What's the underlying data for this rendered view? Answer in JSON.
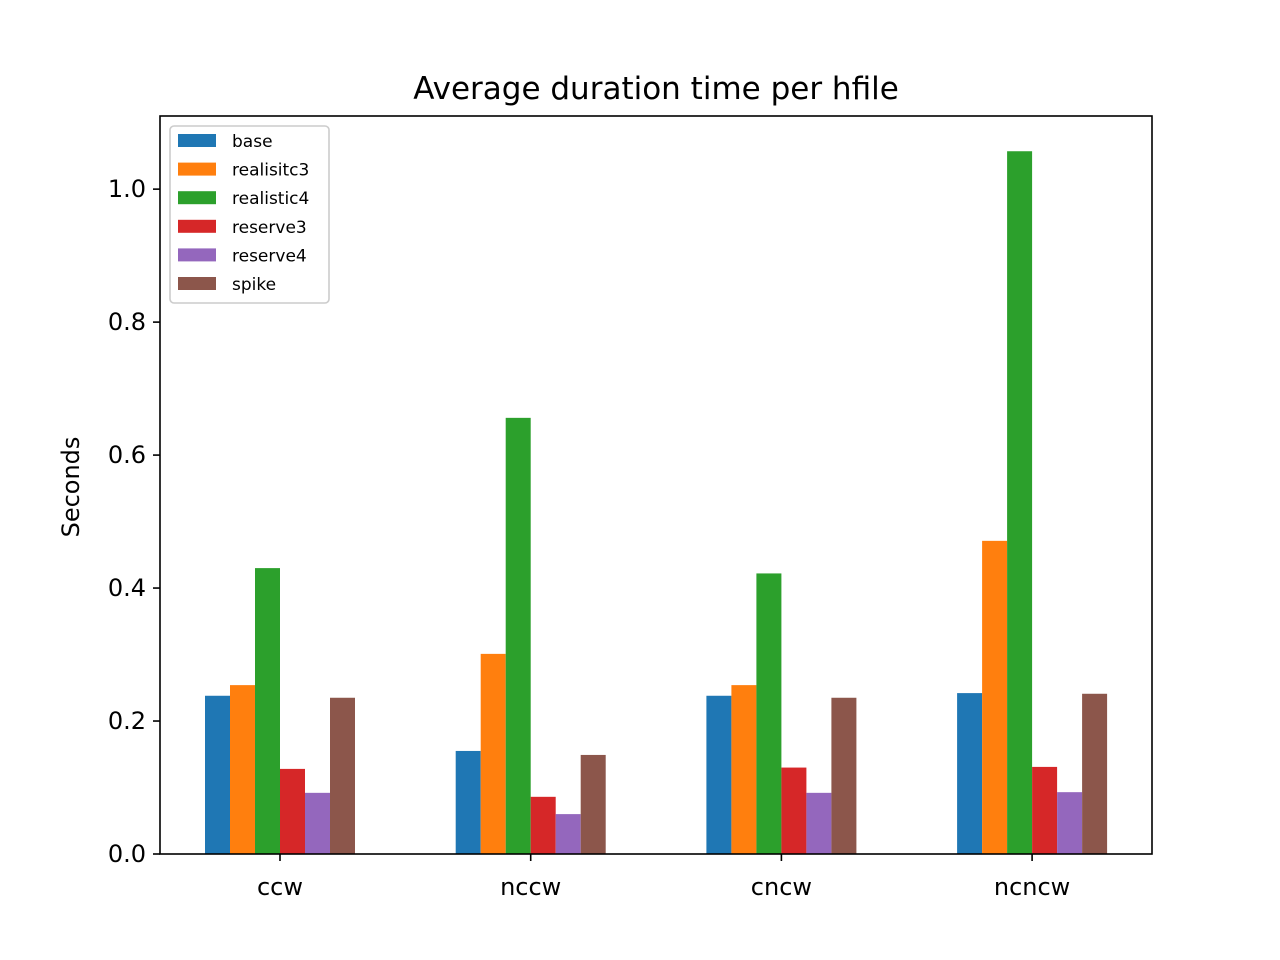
{
  "chart_data": {
    "type": "bar",
    "title": "Average duration time per hfile",
    "xlabel": "",
    "ylabel": "Seconds",
    "categories": [
      "ccw",
      "nccw",
      "cncw",
      "ncncw"
    ],
    "ylim": [
      0,
      1.11
    ],
    "yticks": [
      "0.0",
      "0.2",
      "0.4",
      "0.6",
      "0.8",
      "1.0"
    ],
    "grid": false,
    "legend_position": "top-left",
    "series": [
      {
        "name": "base",
        "color": "#1f77b4",
        "values": [
          0.238,
          0.155,
          0.238,
          0.242
        ]
      },
      {
        "name": "realisitc3",
        "color": "#ff7f0e",
        "values": [
          0.254,
          0.301,
          0.254,
          0.471
        ]
      },
      {
        "name": "realistic4",
        "color": "#2ca02c",
        "values": [
          0.43,
          0.656,
          0.422,
          1.057
        ]
      },
      {
        "name": "reserve3",
        "color": "#d62728",
        "values": [
          0.128,
          0.086,
          0.13,
          0.131
        ]
      },
      {
        "name": "reserve4",
        "color": "#9467bd",
        "values": [
          0.092,
          0.06,
          0.092,
          0.093
        ]
      },
      {
        "name": "spike",
        "color": "#8c564b",
        "values": [
          0.235,
          0.149,
          0.235,
          0.241
        ]
      }
    ]
  }
}
